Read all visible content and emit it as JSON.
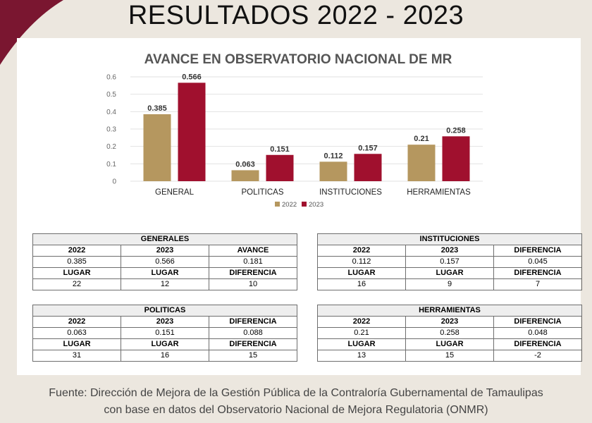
{
  "page": {
    "title": "RESULTADOS 2022 - 2023",
    "source_line1": "Fuente: Dirección de Mejora de la Gestión Pública de la Contraloría Gubernamental de Tamaulipas",
    "source_line2": "con base en datos del Observatorio Nacional de Mejora Regulatoria (ONMR)"
  },
  "chart_data": {
    "type": "bar",
    "title": "AVANCE EN OBSERVATORIO NACIONAL DE MR",
    "categories": [
      "GENERAL",
      "POLITICAS",
      "INSTITUCIONES",
      "HERRAMIENTAS"
    ],
    "series": [
      {
        "name": "2022",
        "values": [
          0.385,
          0.063,
          0.112,
          0.21
        ],
        "labels": [
          "0.385",
          "0.063",
          "0.112",
          "0.21"
        ],
        "color": "#b5975f"
      },
      {
        "name": "2023",
        "values": [
          0.566,
          0.151,
          0.157,
          0.258
        ],
        "labels": [
          "0.566",
          "0.151",
          "0.157",
          "0.258"
        ],
        "color": "#a0102e"
      }
    ],
    "ylim": [
      0,
      0.6
    ],
    "yticks": [
      "0",
      "0.1",
      "0.2",
      "0.3",
      "0.4",
      "0.5",
      "0.6"
    ],
    "grid": true,
    "legend": "bottom"
  },
  "tables": {
    "generales": {
      "title": "GENERALES",
      "rows": [
        [
          "2022",
          "2023",
          "AVANCE"
        ],
        [
          "0.385",
          "0.566",
          "0.181"
        ],
        [
          "LUGAR",
          "LUGAR",
          "DIFERENCIA"
        ],
        [
          "22",
          "12",
          "10"
        ]
      ]
    },
    "instituciones": {
      "title": "INSTITUCIONES",
      "rows": [
        [
          "2022",
          "2023",
          "DIFERENCIA"
        ],
        [
          "0.112",
          "0.157",
          "0.045"
        ],
        [
          "LUGAR",
          "LUGAR",
          "DIFERENCIA"
        ],
        [
          "16",
          "9",
          "7"
        ]
      ]
    },
    "politicas": {
      "title": "POLITICAS",
      "rows": [
        [
          "2022",
          "2023",
          "DIFERENCIA"
        ],
        [
          "0.063",
          "0.151",
          "0.088"
        ],
        [
          "LUGAR",
          "LUGAR",
          "DIFERENCIA"
        ],
        [
          "31",
          "16",
          "15"
        ]
      ]
    },
    "herramientas": {
      "title": "HERRAMIENTAS",
      "rows": [
        [
          "2022",
          "2023",
          "DIFERENCIA"
        ],
        [
          "0.21",
          "0.258",
          "0.048"
        ],
        [
          "LUGAR",
          "LUGAR",
          "DIFERENCIA"
        ],
        [
          "13",
          "15",
          "-2"
        ]
      ]
    }
  }
}
